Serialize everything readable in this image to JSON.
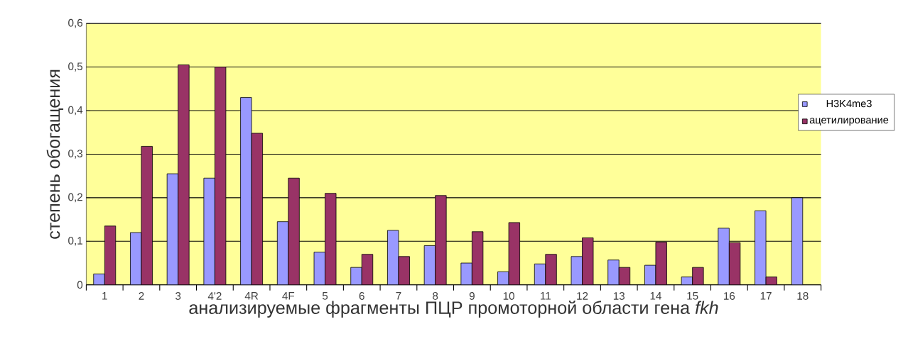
{
  "chart_data": {
    "type": "bar",
    "xlabel": "анализируемые фрагменты ПЦР промоторной области гена *fkh*",
    "ylabel": "степень обогащения",
    "categories": [
      "1",
      "2",
      "3",
      "4'2",
      "4R",
      "4F",
      "5",
      "6",
      "7",
      "8",
      "9",
      "10",
      "11",
      "12",
      "13",
      "14",
      "15",
      "16",
      "17",
      "18"
    ],
    "series": [
      {
        "name": "H3K4me3",
        "color": "#9999ff",
        "values": [
          0.025,
          0.12,
          0.255,
          0.245,
          0.43,
          0.145,
          0.075,
          0.04,
          0.125,
          0.09,
          0.05,
          0.03,
          0.048,
          0.065,
          0.057,
          0.045,
          0.018,
          0.13,
          0.17,
          0.2
        ]
      },
      {
        "name": "ацетилирование",
        "color": "#993366",
        "values": [
          0.135,
          0.318,
          0.505,
          0.5,
          0.348,
          0.245,
          0.21,
          0.07,
          0.065,
          0.205,
          0.122,
          0.143,
          0.07,
          0.108,
          0.04,
          0.098,
          0.04,
          0.097,
          0.018,
          null
        ]
      }
    ],
    "ylim": [
      0,
      0.6
    ],
    "yticks": [
      {
        "value": 0,
        "label": "0"
      },
      {
        "value": 0.1,
        "label": "0,1"
      },
      {
        "value": 0.2,
        "label": "0,2"
      },
      {
        "value": 0.3,
        "label": "0,3"
      },
      {
        "value": 0.4,
        "label": "0,4"
      },
      {
        "value": 0.5,
        "label": "0,5"
      },
      {
        "value": 0.6,
        "label": "0,6"
      }
    ],
    "grid": "y",
    "legend": "right"
  }
}
